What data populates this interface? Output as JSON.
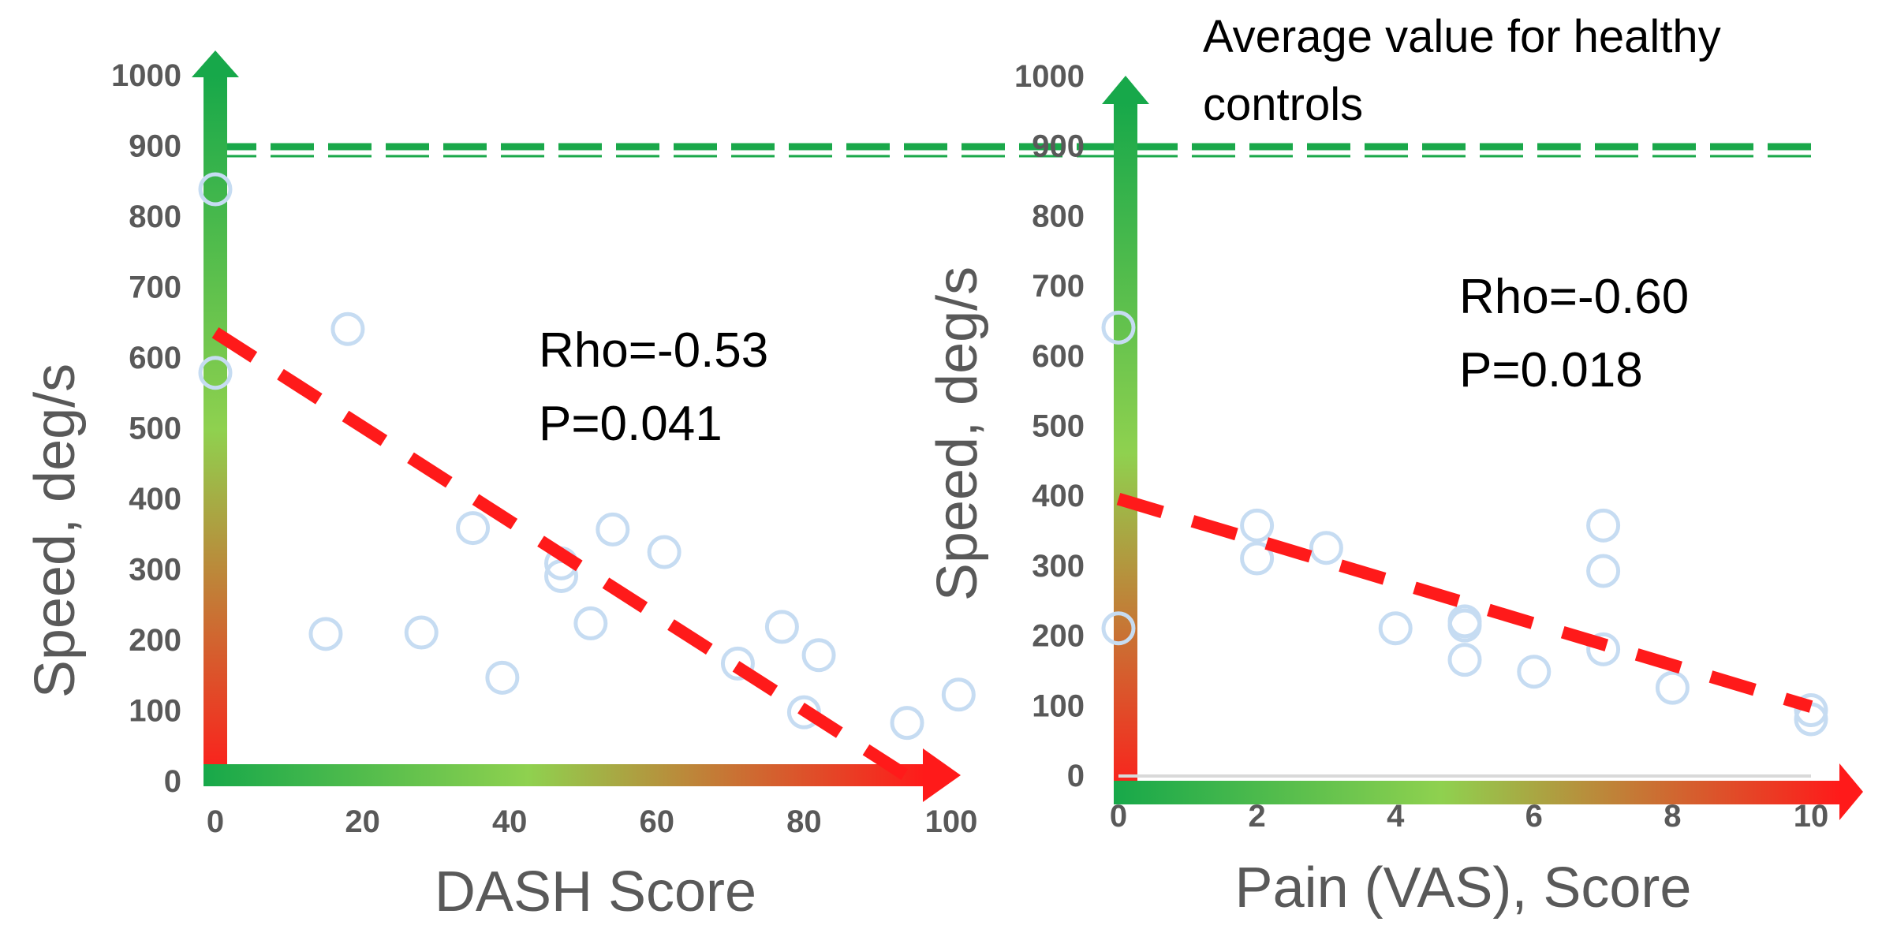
{
  "reference_label": {
    "line1": "Average value for healthy",
    "line2": "controls"
  },
  "colors": {
    "trend": "#ff1a1a",
    "points": "#c6dcf2",
    "reference": "#1aa84a",
    "gradient_start": "#17a84a",
    "gradient_mid": "#8fd14f",
    "gradient_end": "#ff1a1a",
    "text": "#595959"
  },
  "chart_data": [
    {
      "type": "scatter",
      "title": "",
      "xlabel": "DASH Score",
      "ylabel": "Speed, deg/s",
      "xlim": [
        0,
        100
      ],
      "ylim": [
        0,
        1000
      ],
      "xticks": [
        "0",
        "20",
        "40",
        "60",
        "80",
        "100"
      ],
      "yticks": [
        "0",
        "100",
        "200",
        "300",
        "400",
        "500",
        "600",
        "700",
        "800",
        "900",
        "1000"
      ],
      "points": [
        {
          "x": 0,
          "y": 838
        },
        {
          "x": 0,
          "y": 578
        },
        {
          "x": 15,
          "y": 208
        },
        {
          "x": 18,
          "y": 640
        },
        {
          "x": 28,
          "y": 210
        },
        {
          "x": 35,
          "y": 358
        },
        {
          "x": 39,
          "y": 146
        },
        {
          "x": 47,
          "y": 308
        },
        {
          "x": 47,
          "y": 290
        },
        {
          "x": 51,
          "y": 223
        },
        {
          "x": 54,
          "y": 356
        },
        {
          "x": 61,
          "y": 324
        },
        {
          "x": 71,
          "y": 166
        },
        {
          "x": 77,
          "y": 218
        },
        {
          "x": 80,
          "y": 97
        },
        {
          "x": 82,
          "y": 178
        },
        {
          "x": 94,
          "y": 82
        },
        {
          "x": 101,
          "y": 122
        }
      ],
      "trendline": {
        "x": [
          0,
          95
        ],
        "y": [
          635,
          0
        ]
      },
      "reference_value": 895,
      "annotation": {
        "rho": "Rho=-0.53",
        "p": "P=0.041"
      }
    },
    {
      "type": "scatter",
      "title": "",
      "xlabel": "Pain (VAS), Score",
      "ylabel": "Speed, deg/s",
      "xlim": [
        0,
        10
      ],
      "ylim": [
        0,
        1000
      ],
      "xticks": [
        "0",
        "2",
        "4",
        "6",
        "8",
        "10"
      ],
      "yticks": [
        "0",
        "100",
        "200",
        "300",
        "400",
        "500",
        "600",
        "700",
        "800",
        "900",
        "1000"
      ],
      "points": [
        {
          "x": 0,
          "y": 640
        },
        {
          "x": 0,
          "y": 210
        },
        {
          "x": 2,
          "y": 357
        },
        {
          "x": 2,
          "y": 310
        },
        {
          "x": 3,
          "y": 325
        },
        {
          "x": 4,
          "y": 210
        },
        {
          "x": 5,
          "y": 220
        },
        {
          "x": 5,
          "y": 214
        },
        {
          "x": 5,
          "y": 165
        },
        {
          "x": 6,
          "y": 148
        },
        {
          "x": 7,
          "y": 357
        },
        {
          "x": 7,
          "y": 292
        },
        {
          "x": 7,
          "y": 180
        },
        {
          "x": 8,
          "y": 125
        },
        {
          "x": 10,
          "y": 93
        },
        {
          "x": 10,
          "y": 80
        }
      ],
      "trendline": {
        "x": [
          0,
          10
        ],
        "y": [
          395,
          98
        ]
      },
      "reference_value": 895,
      "annotation": {
        "rho": "Rho=-0.60",
        "p": "P=0.018"
      }
    }
  ]
}
